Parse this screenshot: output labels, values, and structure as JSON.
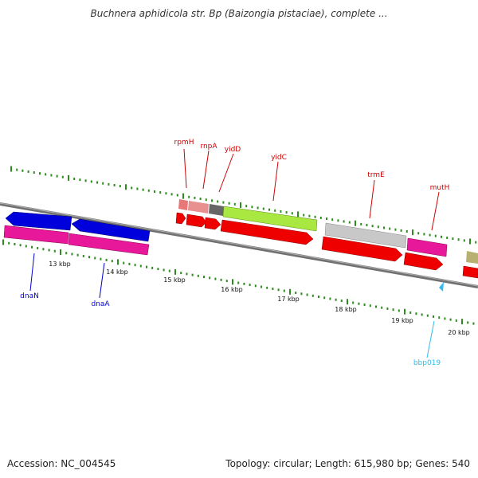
{
  "title": "Buchnera aphidicola str. Bp (Baizongia pistaciae), complete ...",
  "footer": {
    "accession": "Accession: NC_004545",
    "summary": "Topology: circular; Length: 615,980 bp; Genes: 540"
  },
  "scale": {
    "labels": [
      "13 kbp",
      "14 kbp",
      "15 kbp",
      "16 kbp",
      "17 kbp",
      "18 kbp",
      "19 kbp",
      "20 kbp"
    ]
  },
  "colors": {
    "backbone": "#808080",
    "tick": "#2e8b1f",
    "label_forward": "#cc0000",
    "label_reverse": "#0000cc",
    "label_rna": "#33bbee"
  },
  "gene_labels": {
    "rpmH": "rpmH",
    "rnpA": "rnpA",
    "yidD": "yidD",
    "yidC": "yidC",
    "trmE": "trmE",
    "mutH": "mutH",
    "dnaN": "dnaN",
    "dnaA": "dnaA",
    "bbp019": "bbp019"
  }
}
